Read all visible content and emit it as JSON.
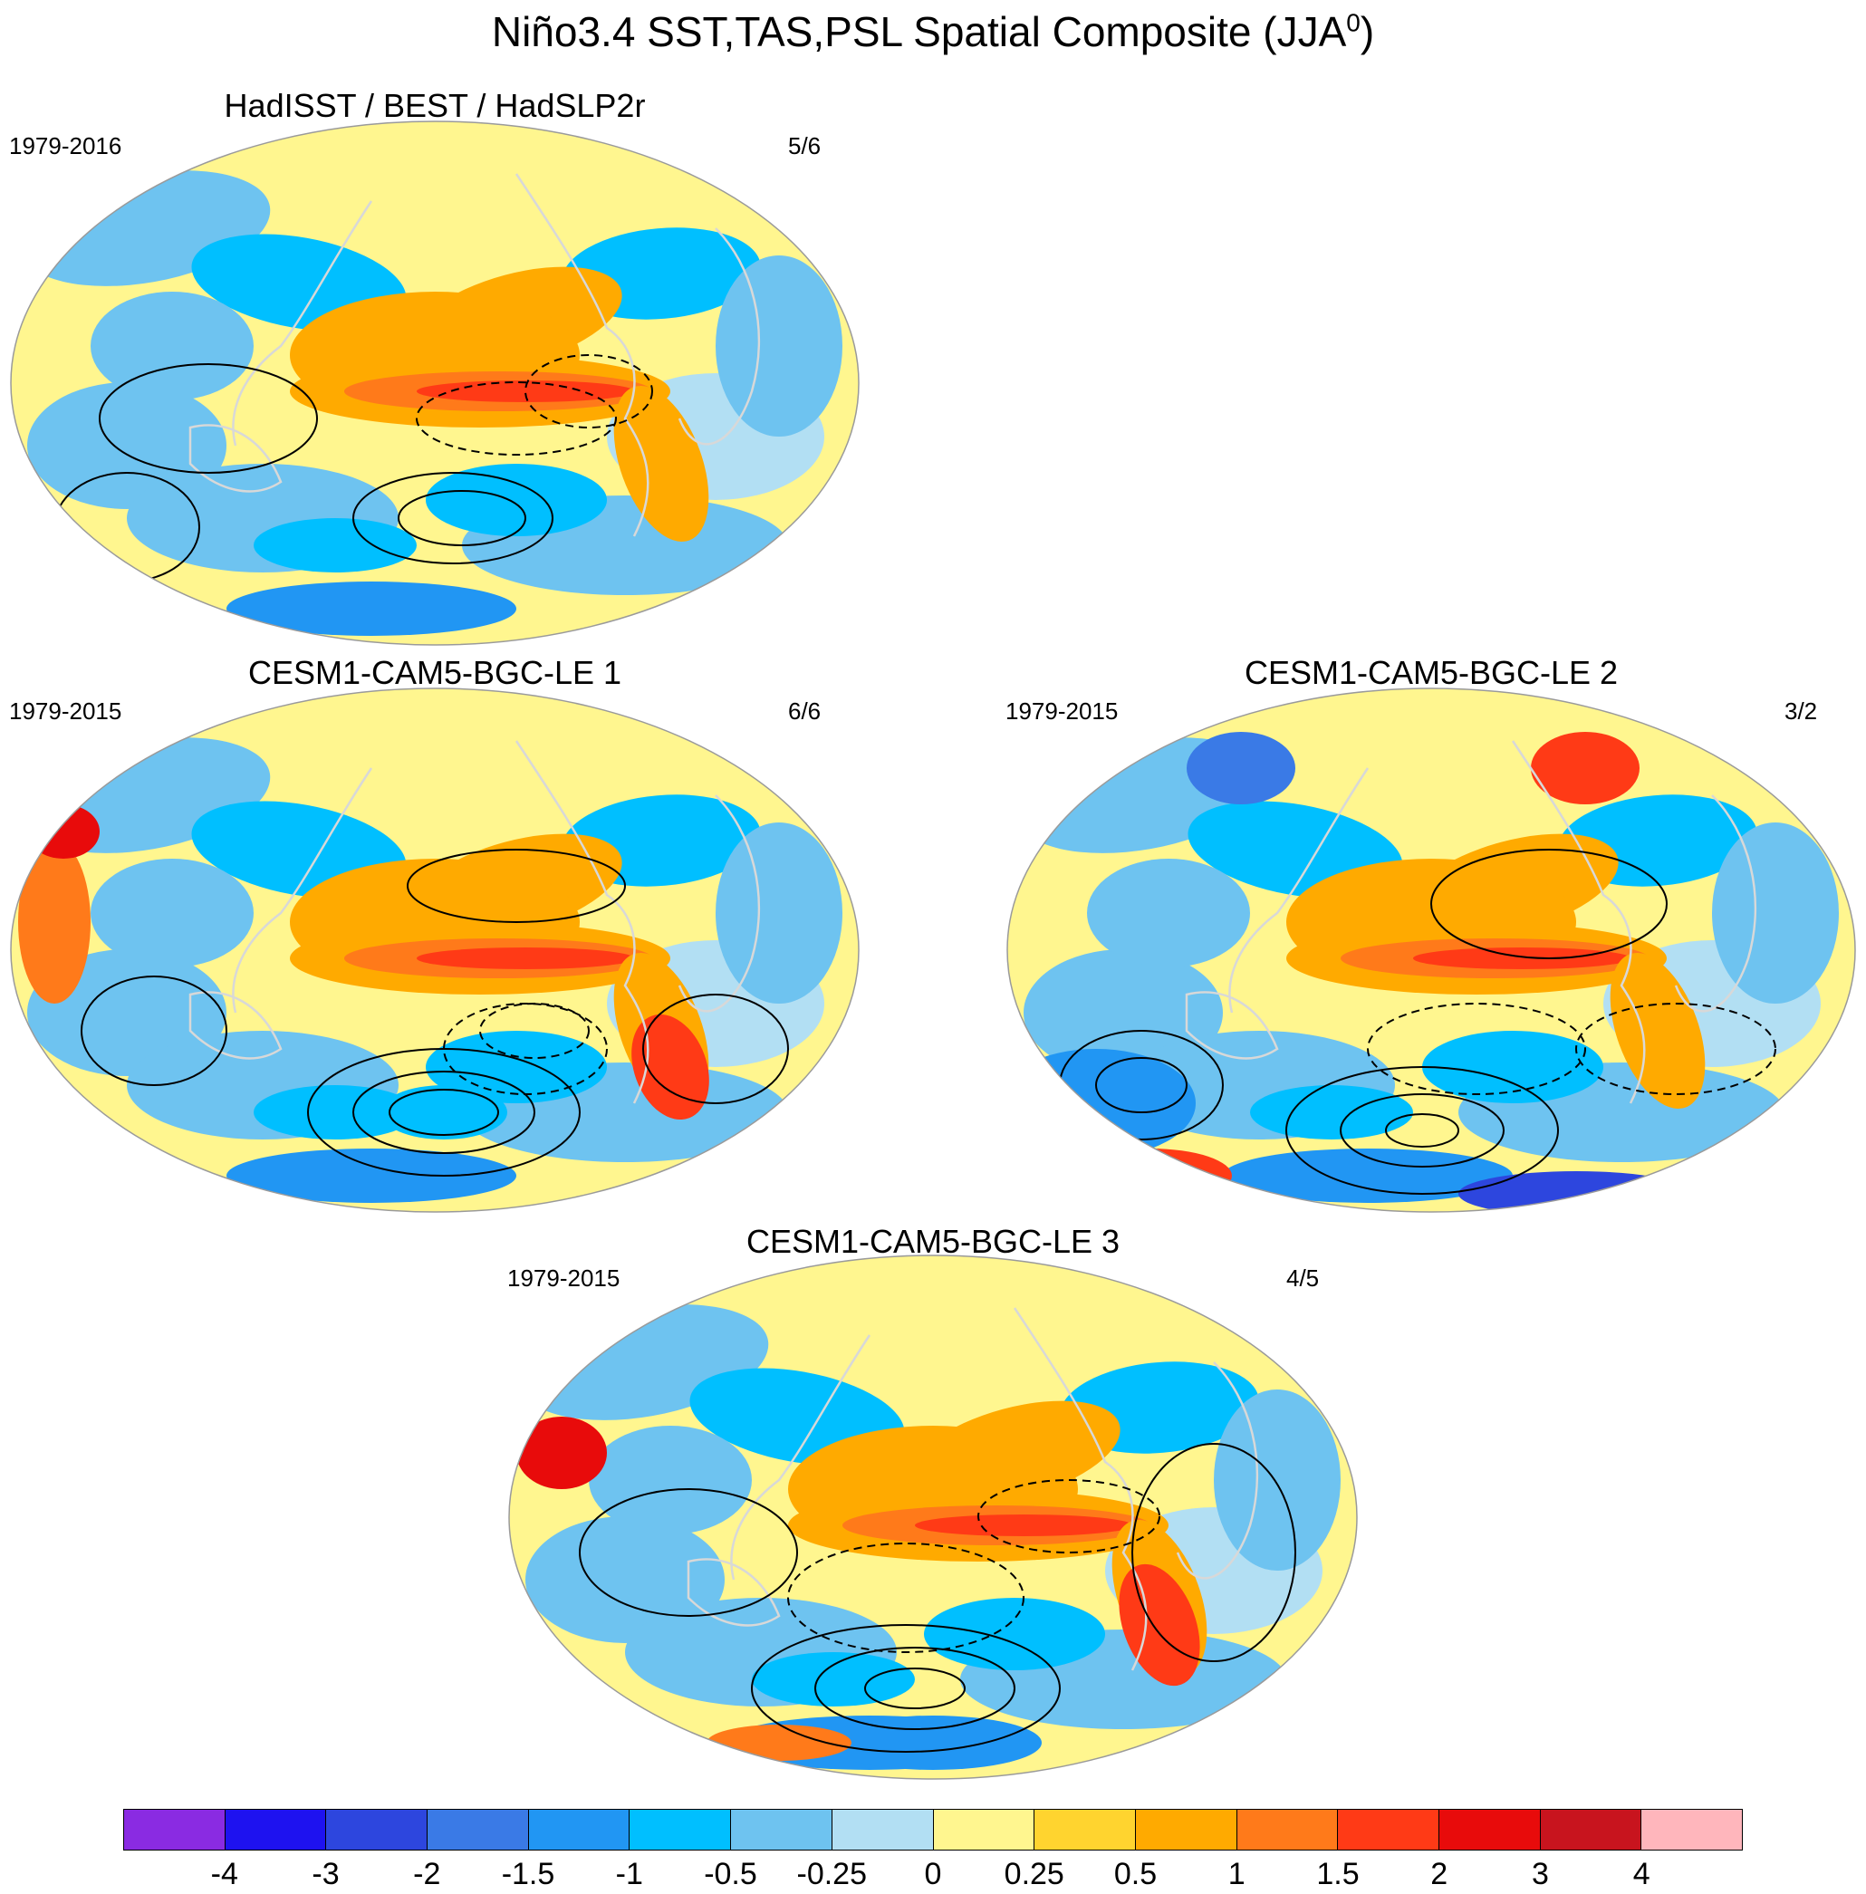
{
  "figure": {
    "title_main": "Niño3.4 SST,TAS,PSL Spatial Composite (JJA",
    "title_sup": "0",
    "title_close": ")"
  },
  "panels": [
    {
      "title": "HadISST / BEST / HadSLP2r",
      "years": "1979-2016",
      "count": "5/6"
    },
    {
      "title": "CESM1-CAM5-BGC-LE 1",
      "years": "1979-2015",
      "count": "6/6"
    },
    {
      "title": "CESM1-CAM5-BGC-LE 2",
      "years": "1979-2015",
      "count": "3/2"
    },
    {
      "title": "CESM1-CAM5-BGC-LE 3",
      "years": "1979-2015",
      "count": "4/5"
    }
  ],
  "colorbar": {
    "colors": [
      "#8a2be2",
      "#1e12f0",
      "#2d46de",
      "#3a7ae6",
      "#2196f3",
      "#00bfff",
      "#6ec3f0",
      "#b2dff3",
      "#fff68f",
      "#ffd42f",
      "#ffaa00",
      "#ff7a1a",
      "#ff3a16",
      "#e80b0b",
      "#c8141e",
      "#ffb6bc"
    ],
    "labels": [
      "-4",
      "-3",
      "-2",
      "-1.5",
      "-1",
      "-0.5",
      "-0.25",
      "0",
      "0.25",
      "0.5",
      "1",
      "1.5",
      "2",
      "3",
      "4"
    ]
  },
  "chart_data": {
    "type": "heatmap",
    "title": "Niño3.4 SST,TAS,PSL Spatial Composite (JJA0)",
    "projection": "global Robinson-like ellipse, Pacific-centered",
    "filled_variable": "SST / TAS composite",
    "contour_variable": "PSL composite (solid positive, dashed negative)",
    "contour_levels": [
      -4,
      -3,
      -2,
      -1.5,
      -1,
      -0.5,
      -0.25,
      0,
      0.25,
      0.5,
      1,
      1.5,
      2,
      3,
      4
    ],
    "panels": [
      {
        "title": "HadISST / BEST / HadSLP2r",
        "years": "1979-2016",
        "count": "5/6"
      },
      {
        "title": "CESM1-CAM5-BGC-LE 1",
        "years": "1979-2015",
        "count": "6/6"
      },
      {
        "title": "CESM1-CAM5-BGC-LE 2",
        "years": "1979-2015",
        "count": "3/2"
      },
      {
        "title": "CESM1-CAM5-BGC-LE 3",
        "years": "1979-2015",
        "count": "4/5"
      }
    ]
  }
}
